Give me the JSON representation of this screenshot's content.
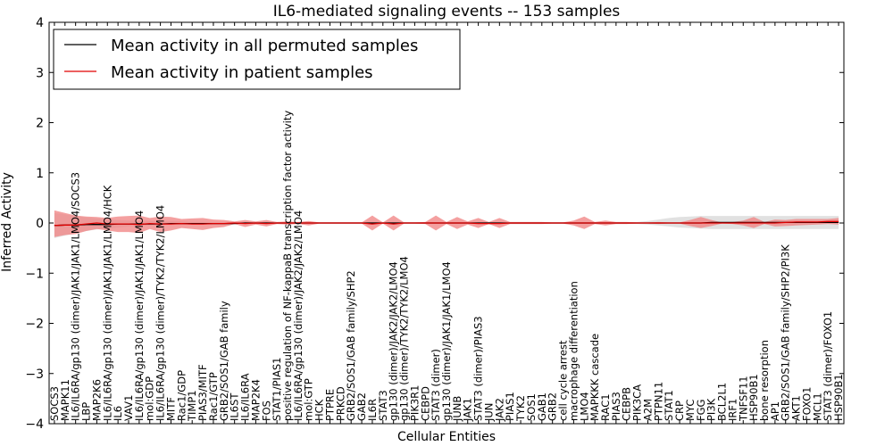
{
  "chart_data": {
    "type": "line",
    "title": "IL6-mediated signaling events -- 153 samples",
    "xlabel": "Cellular Entities",
    "ylabel": "Inferred Activity",
    "ylim": [
      -4,
      4
    ],
    "yticks": [
      "4",
      "3",
      "2",
      "1",
      "0",
      "−1",
      "−2",
      "−3",
      "−4"
    ],
    "grid": false,
    "legend_position": "top-left",
    "colors": {
      "permuted_line": "#000000",
      "permuted_band": "#d9d9d9",
      "patient_line": "#e00000",
      "patient_band": "#f08080"
    },
    "categories": [
      "SOCS3",
      "MAPK11",
      "IL6/IL6RA/gp130 (dimer)/JAK1/JAK1/LMO4/SOCS3",
      "LBP",
      "MAP2K6",
      "IL6/IL6RA/gp130 (dimer)/JAK1/JAK1/LMO4/HCK",
      "IL6",
      "VAV1",
      "IL6/IL6RA/gp130 (dimer)/JAK1/JAK1/LMO4",
      "mol:GDP",
      "IL6/IL6RA/gp130 (dimer)/TYK2/TYK2/LMO4",
      "MITF",
      "Rac1/GDP",
      "TIMP1",
      "PIAS3/MITF",
      "Rac1/GTP",
      "GRB2/SOS1/GAB family",
      "IL6ST",
      "IL6/IL6RA",
      "MAP2K4",
      "FOS",
      "STAT1/PIAS1",
      "positive regulation of NF-kappaB transcription factor activity",
      "IL6/IL6RA/gp130 (dimer)/JAK2/JAK2/LMO4",
      "mol:GTP",
      "HCK",
      "PTPRE",
      "PRKCD",
      "GRB2/SOS1/GAB family/SHP2",
      "GAB2",
      "IL6R",
      "STAT3",
      "gp130 (dimer)/JAK2/JAK2/LMO4",
      "gp130 (dimer)/TYK2/TYK2/LMO4",
      "PIK3R1",
      "CEBPD",
      "STAT3 (dimer)",
      "gp130 (dimer)/JAK1/JAK1/LMO4",
      "JUNB",
      "JAK1",
      "STAT3 (dimer)/PIAS3",
      "JUN",
      "JAK2",
      "PIAS1",
      "TYK2",
      "SOS1",
      "GAB1",
      "GRB2",
      "cell cycle arrest",
      "macrophage differentiation",
      "LMO4",
      "MAPKKK cascade",
      "RAC1",
      "PIAS3",
      "CEBPB",
      "PIK3CA",
      "A2M",
      "PTPN11",
      "STAT1",
      "CRP",
      "MYC",
      "FGG",
      "PI3K",
      "BCL2L1",
      "IRF1",
      "TNFSF11",
      "HSP90B1",
      "bone resorption",
      "AP1",
      "GRB2/SOS1/GAB family/SHP2/PI3K",
      "AKT1",
      "FOXO1",
      "MCL1",
      "STAT3 (dimer)/FOXO1",
      "HSP90B1"
    ],
    "series": [
      {
        "name": "Mean activity in all permuted samples",
        "values": [
          -0.05,
          -0.04,
          -0.04,
          -0.03,
          -0.03,
          -0.03,
          -0.02,
          -0.02,
          -0.02,
          -0.02,
          -0.02,
          -0.01,
          -0.01,
          -0.01,
          -0.01,
          -0.01,
          -0.01,
          -0.01,
          0,
          0,
          0,
          0,
          0,
          0,
          0,
          0,
          0,
          0,
          0,
          0,
          0,
          0,
          0,
          0,
          0,
          0,
          0,
          0,
          0,
          0,
          0,
          0,
          0,
          0,
          0,
          0,
          0,
          0,
          0,
          0,
          0,
          0,
          0,
          0,
          0,
          0,
          0,
          0,
          0,
          0,
          0,
          0,
          0.01,
          0.01,
          0.01,
          0.01,
          0.01,
          0.01,
          0.01,
          0.01,
          0.01,
          0.01,
          0.01,
          0.01,
          0.01
        ],
        "lower": [
          -0.3,
          -0.25,
          -0.2,
          -0.16,
          -0.13,
          -0.11,
          -0.09,
          -0.07,
          -0.06,
          -0.05,
          -0.04,
          -0.04,
          -0.03,
          -0.03,
          -0.03,
          -0.02,
          -0.02,
          -0.02,
          -0.02,
          -0.02,
          -0.02,
          -0.02,
          -0.02,
          -0.02,
          -0.02,
          -0.02,
          -0.02,
          -0.02,
          -0.02,
          -0.02,
          -0.02,
          -0.02,
          -0.02,
          -0.02,
          -0.02,
          -0.02,
          -0.02,
          -0.02,
          -0.02,
          -0.02,
          -0.02,
          -0.02,
          -0.02,
          -0.02,
          -0.02,
          -0.02,
          -0.02,
          -0.02,
          -0.02,
          -0.02,
          -0.02,
          -0.02,
          -0.02,
          -0.02,
          -0.02,
          -0.02,
          -0.03,
          -0.05,
          -0.07,
          -0.09,
          -0.1,
          -0.11,
          -0.12,
          -0.12,
          -0.12,
          -0.12,
          -0.12,
          -0.12,
          -0.12,
          -0.12,
          -0.12,
          -0.12,
          -0.12,
          -0.12,
          -0.12
        ],
        "upper": [
          0.2,
          0.17,
          0.14,
          0.11,
          0.09,
          0.07,
          0.06,
          0.05,
          0.04,
          0.04,
          0.03,
          0.03,
          0.03,
          0.02,
          0.02,
          0.02,
          0.02,
          0.02,
          0.02,
          0.02,
          0.02,
          0.02,
          0.02,
          0.02,
          0.02,
          0.02,
          0.02,
          0.02,
          0.02,
          0.02,
          0.02,
          0.02,
          0.02,
          0.02,
          0.02,
          0.02,
          0.02,
          0.02,
          0.02,
          0.02,
          0.02,
          0.02,
          0.02,
          0.02,
          0.02,
          0.02,
          0.02,
          0.02,
          0.02,
          0.02,
          0.02,
          0.02,
          0.02,
          0.02,
          0.02,
          0.02,
          0.04,
          0.07,
          0.1,
          0.12,
          0.13,
          0.14,
          0.14,
          0.14,
          0.14,
          0.14,
          0.14,
          0.14,
          0.14,
          0.14,
          0.14,
          0.14,
          0.14,
          0.14,
          0.14
        ]
      },
      {
        "name": "Mean activity in patient samples",
        "values": [
          -0.05,
          -0.04,
          -0.04,
          -0.02,
          0,
          -0.02,
          -0.02,
          -0.02,
          -0.03,
          -0.01,
          -0.02,
          -0.02,
          -0.01,
          -0.02,
          -0.02,
          -0.01,
          -0.01,
          0,
          -0.01,
          0,
          -0.01,
          0,
          0,
          0,
          0,
          0,
          0,
          0,
          0,
          0,
          -0.02,
          0,
          -0.02,
          0,
          0,
          0,
          0,
          0,
          0,
          0,
          -0.01,
          -0.01,
          -0.01,
          0,
          0,
          0,
          0,
          0,
          0,
          0,
          0,
          0,
          0,
          0,
          0,
          0,
          0,
          0,
          0,
          0,
          0,
          0,
          0,
          0,
          0,
          0,
          0,
          0,
          0,
          0.01,
          0.02,
          0.02,
          0.02,
          0.03,
          0.03
        ],
        "lower": [
          -0.28,
          -0.24,
          -0.22,
          -0.16,
          -0.12,
          -0.15,
          -0.18,
          -0.18,
          -0.2,
          -0.12,
          -0.18,
          -0.15,
          -0.1,
          -0.12,
          -0.14,
          -0.1,
          -0.08,
          -0.02,
          -0.08,
          -0.03,
          -0.07,
          -0.02,
          -0.03,
          -0.02,
          -0.05,
          -0.01,
          -0.01,
          -0.01,
          -0.01,
          -0.01,
          -0.15,
          -0.01,
          -0.15,
          -0.01,
          -0.01,
          -0.02,
          -0.15,
          -0.02,
          -0.12,
          -0.03,
          -0.1,
          -0.02,
          -0.1,
          -0.02,
          -0.02,
          -0.02,
          -0.02,
          -0.01,
          -0.01,
          -0.05,
          -0.12,
          -0.02,
          -0.05,
          -0.02,
          -0.02,
          -0.01,
          -0.01,
          -0.02,
          -0.01,
          -0.01,
          -0.06,
          -0.1,
          -0.06,
          -0.01,
          -0.02,
          -0.05,
          -0.1,
          -0.02,
          -0.07,
          -0.06,
          -0.05,
          -0.04,
          -0.03,
          -0.02,
          -0.03
        ],
        "upper": [
          0.25,
          0.2,
          0.15,
          0.13,
          0.12,
          0.1,
          0.13,
          0.14,
          0.15,
          0.1,
          0.13,
          0.12,
          0.08,
          0.09,
          0.1,
          0.07,
          0.06,
          0.03,
          0.06,
          0.03,
          0.06,
          0.02,
          0.03,
          0.02,
          0.04,
          0.01,
          0.01,
          0.01,
          0.01,
          0.01,
          0.15,
          0.01,
          0.15,
          0.01,
          0.01,
          0.02,
          0.15,
          0.02,
          0.12,
          0.03,
          0.1,
          0.02,
          0.1,
          0.02,
          0.02,
          0.02,
          0.02,
          0.01,
          0.01,
          0.05,
          0.13,
          0.02,
          0.05,
          0.02,
          0.02,
          0.01,
          0.01,
          0.02,
          0.01,
          0.01,
          0.06,
          0.12,
          0.06,
          0.01,
          0.02,
          0.05,
          0.12,
          0.02,
          0.07,
          0.06,
          0.08,
          0.08,
          0.08,
          0.08,
          0.1
        ]
      }
    ]
  }
}
